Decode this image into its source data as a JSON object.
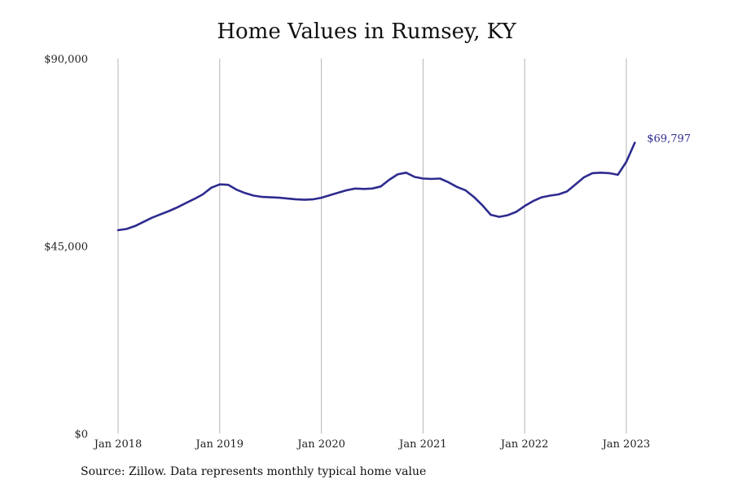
{
  "title": "Home Values in Rumsey, KY",
  "source": "Source: Zillow. Data represents monthly typical home value",
  "colors": {
    "line": "#2e2b8f",
    "grid": "#b5b5b5",
    "end_label": "#2e2b8f"
  },
  "chart_data": {
    "type": "line",
    "title": "Home Values in Rumsey, KY",
    "xlabel": "",
    "ylabel": "",
    "ylim": [
      0,
      90000
    ],
    "xlim": [
      "2018-01",
      "2023-04"
    ],
    "y_ticks": [
      {
        "value": 0,
        "label": "$0"
      },
      {
        "value": 45000,
        "label": "$45,000"
      },
      {
        "value": 90000,
        "label": "$90,000"
      }
    ],
    "x_ticks": [
      {
        "value": "2018-01",
        "label": "Jan 2018"
      },
      {
        "value": "2019-01",
        "label": "Jan 2019"
      },
      {
        "value": "2020-01",
        "label": "Jan 2020"
      },
      {
        "value": "2021-01",
        "label": "Jan 2021"
      },
      {
        "value": "2022-01",
        "label": "Jan 2022"
      },
      {
        "value": "2023-01",
        "label": "Jan 2023"
      }
    ],
    "grid": {
      "vertical": true,
      "horizontal": false
    },
    "end_label": "$69,797",
    "series": [
      {
        "x": [
          "2018-01",
          "2018-02",
          "2018-03",
          "2018-04",
          "2018-05",
          "2018-06",
          "2018-07",
          "2018-08",
          "2018-09",
          "2018-10",
          "2018-11",
          "2018-12",
          "2019-01",
          "2019-02",
          "2019-03",
          "2019-04",
          "2019-05",
          "2019-06",
          "2019-07",
          "2019-08",
          "2019-09",
          "2019-10",
          "2019-11",
          "2019-12",
          "2020-01",
          "2020-02",
          "2020-03",
          "2020-04",
          "2020-05",
          "2020-06",
          "2020-07",
          "2020-08",
          "2020-09",
          "2020-10",
          "2020-11",
          "2020-12",
          "2021-01",
          "2021-02",
          "2021-03",
          "2021-04",
          "2021-05",
          "2021-06",
          "2021-07",
          "2021-08",
          "2021-09",
          "2021-10",
          "2021-11",
          "2021-12",
          "2022-01",
          "2022-02",
          "2022-03",
          "2022-04",
          "2022-05",
          "2022-06",
          "2022-07",
          "2022-08",
          "2022-09",
          "2022-10",
          "2022-11",
          "2022-12",
          "2023-01",
          "2023-02"
        ],
        "values": [
          48800,
          49100,
          49800,
          50800,
          51800,
          52600,
          53400,
          54300,
          55300,
          56300,
          57400,
          59000,
          59800,
          59700,
          58500,
          57700,
          57100,
          56800,
          56700,
          56600,
          56400,
          56200,
          56100,
          56200,
          56600,
          57200,
          57800,
          58400,
          58800,
          58700,
          58800,
          59300,
          60900,
          62200,
          62600,
          61600,
          61200,
          61100,
          61200,
          60300,
          59200,
          58400,
          56800,
          54800,
          52500,
          52000,
          52400,
          53200,
          54600,
          55800,
          56700,
          57100,
          57400,
          58100,
          59800,
          61500,
          62500,
          62600,
          62500,
          62100,
          65200,
          69797
        ]
      }
    ]
  }
}
